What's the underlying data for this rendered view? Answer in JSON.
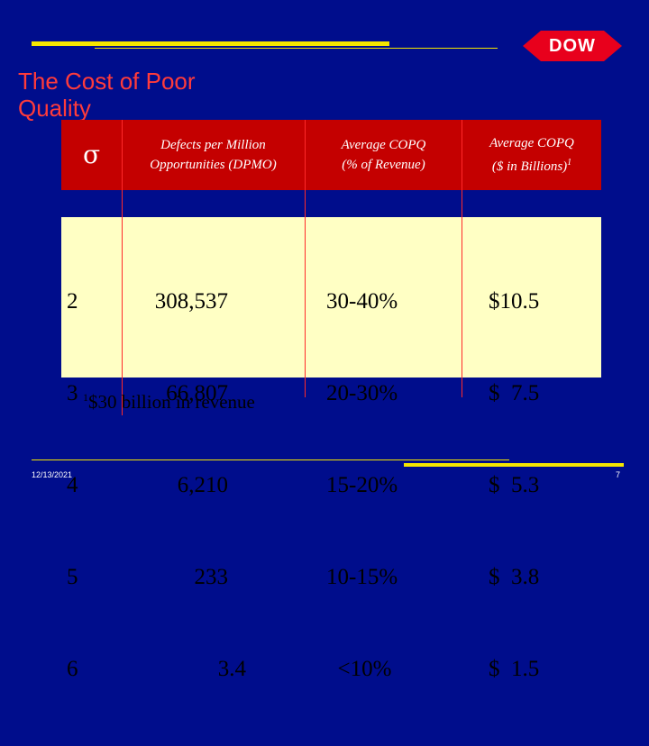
{
  "logo": {
    "text": "DOW",
    "diamond_color": "#e8001c"
  },
  "title": {
    "line1": "The Cost of Poor",
    "line2": "Quality"
  },
  "table": {
    "headers": {
      "sigma": "σ",
      "dpmo_line1": "Defects per Million",
      "dpmo_line2": "Opportunities (DPMO)",
      "pct_line1": "Average COPQ",
      "pct_line2": "(% of Revenue)",
      "bil_line1": "Average COPQ",
      "bil_line2": "($ in Billions)",
      "bil_sup": "1"
    },
    "rows": [
      {
        "sigma": "2",
        "dpmo": "308,537",
        "pct": "30-40%",
        "bil": "$10.5"
      },
      {
        "sigma": "3",
        "dpmo": "66,807",
        "pct": "20-30%",
        "bil": "$  7.5"
      },
      {
        "sigma": "4",
        "dpmo": "6,210",
        "pct": "15-20%",
        "bil": "$  5.3"
      },
      {
        "sigma": "5",
        "dpmo": "233",
        "pct": "10-15%",
        "bil": "$  3.8"
      },
      {
        "sigma": "6",
        "dpmo": "3.4",
        "pct": "  <10%",
        "bil": "$  1.5"
      }
    ]
  },
  "footnote": {
    "sup": "1",
    "text": "$30 billion in revenue"
  },
  "footer": {
    "date": "12/13/2021",
    "page": "7"
  },
  "colors": {
    "background": "#000d8c",
    "accent": "#f5e600",
    "header": "#c40000",
    "body": "#ffffc4",
    "title": "#ff3b3b"
  }
}
